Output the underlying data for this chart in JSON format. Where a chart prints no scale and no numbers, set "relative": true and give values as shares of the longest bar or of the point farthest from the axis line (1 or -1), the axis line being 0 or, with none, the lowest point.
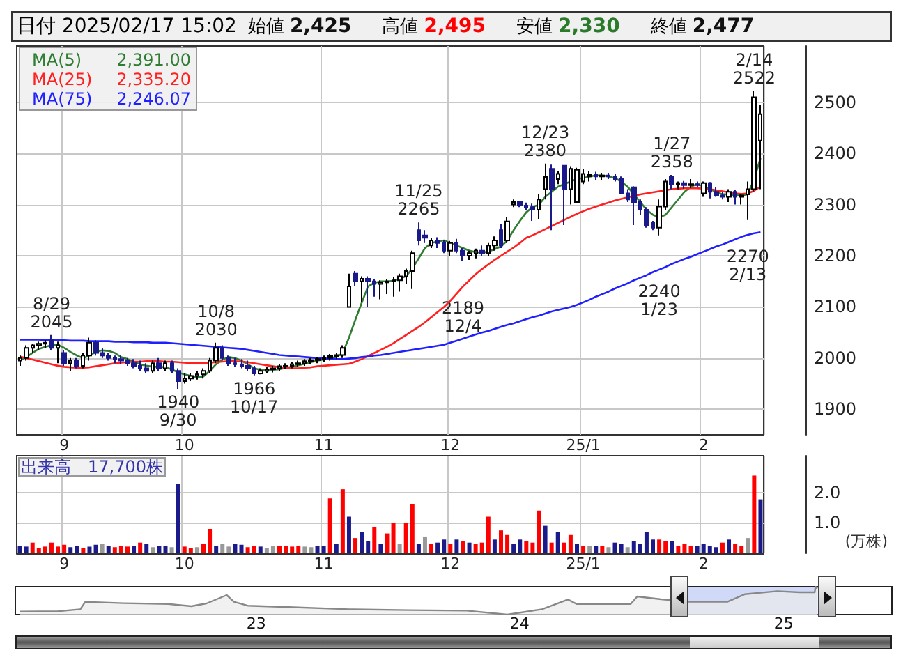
{
  "chart_data": [
    {
      "type": "candlestick",
      "title": "日付 2025/02/17 15:02",
      "annotations": [
        "始値 2,425",
        "高値 2,495",
        "安値 2,330",
        "終値 2,477",
        "2,391.00",
        "2,335.20",
        "2,246.07",
        {
          "text": "8/29\n2045",
          "y": 2045
        },
        {
          "text": "10/8\n2030",
          "y": 2030
        },
        {
          "text": "11/25\n2265",
          "y": 2265
        },
        {
          "text": "12/23\n2380",
          "y": 2380
        },
        {
          "text": "1/27\n2358",
          "y": 2358
        },
        {
          "text": "2/14\n2522",
          "y": 2522
        },
        {
          "text": "1940\n9/30",
          "y": 1940
        },
        {
          "text": "1966\n10/17",
          "y": 1966
        },
        {
          "text": "2189\n12/4",
          "y": 2189
        },
        {
          "text": "2240\n1/23",
          "y": 2240
        },
        {
          "text": "2270\n2/13",
          "y": 2270
        }
      ],
      "categories": [
        null,
        null,
        null,
        null,
        null,
        null,
        null,
        "9",
        null,
        null,
        null,
        null,
        null,
        null,
        null,
        null,
        null,
        null,
        null,
        null,
        null,
        null,
        null,
        null,
        null,
        null,
        "10",
        null,
        null,
        null,
        null,
        null,
        null,
        null,
        null,
        null,
        null,
        null,
        null,
        null,
        null,
        null,
        null,
        null,
        null,
        null,
        null,
        null,
        "11",
        null,
        null,
        null,
        null,
        null,
        null,
        null,
        null,
        null,
        null,
        null,
        null,
        null,
        null,
        null,
        null,
        null,
        null,
        null,
        "12",
        null,
        null,
        null,
        null,
        null,
        null,
        null,
        null,
        null,
        null,
        null,
        null,
        null,
        null,
        null,
        null,
        null,
        null,
        null,
        null,
        "25/1",
        null,
        null,
        null,
        null,
        null,
        null,
        null,
        null,
        null,
        null,
        null,
        null,
        null,
        null,
        null,
        null,
        null,
        null,
        "2",
        null,
        null,
        null,
        null,
        null,
        null,
        null,
        null,
        null
      ],
      "colors": [
        "#ffffff",
        "#ffffff",
        "#ffffff",
        "#ffffff",
        "#ffffff",
        "#1a1a8a",
        "#ffffff",
        "#1a1a8a",
        "#ffffff",
        "#1a1a8a",
        "#ffffff",
        "#ffffff",
        "#1a1a8a",
        "#1a1a8a",
        "#1a1a8a",
        "#1a1a8a",
        "#1a1a8a",
        "#1a1a8a",
        "#1a1a8a",
        "#1a1a8a",
        "#1a1a8a",
        "#ffffff",
        "#1a1a8a",
        "#ffffff",
        "#1a1a8a",
        "#1a1a8a",
        "#ffffff",
        "#ffffff",
        "#ffffff",
        "#ffffff",
        "#ffffff",
        "#ffffff",
        "#1a1a8a",
        "#1a1a8a",
        "#1a1a8a",
        "#1a1a8a",
        "#1a1a8a",
        "#1a1a8a",
        "#ffffff",
        "#ffffff",
        "#ffffff",
        "#ffffff",
        "#ffffff",
        "#ffffff",
        "#ffffff",
        "#ffffff",
        "#ffffff",
        "#ffffff",
        "#ffffff",
        "#ffffff",
        "#ffffff",
        "#ffffff",
        "#ffffff",
        "#1a1a8a",
        "#ffffff",
        "#1a1a8a",
        "#1a1a8a",
        "#ffffff",
        "#ffffff",
        "#ffffff",
        "#ffffff",
        "#ffffff",
        "#ffffff",
        "#1a1a8a",
        "#1a1a8a",
        "#ffffff",
        "#1a1a8a",
        "#1a1a8a",
        "#ffffff",
        "#1a1a8a",
        "#1a1a8a",
        "#ffffff",
        "#ffffff",
        "#1a1a8a",
        "#ffffff",
        "#ffffff",
        "#1a1a8a",
        "#ffffff",
        "#ffffff",
        "#1a1a8a",
        "#1a1a8a",
        "#1a1a8a",
        "#ffffff",
        "#ffffff",
        "#1a1a8a",
        "#ffffff",
        "#1a1a8a",
        "#ffffff",
        "#ffffff",
        "#ffffff",
        "#ffffff",
        "#1a1a8a",
        "#ffffff",
        "#1a1a8a",
        "#1a1a8a",
        "#1a1a8a",
        "#1a1a8a",
        "#1a1a8a",
        "#1a1a8a",
        "#1a1a8a",
        "#1a1a8a",
        "#ffffff",
        "#ffffff",
        "#1a1a8a",
        "#ffffff",
        "#1a1a8a",
        "#ffffff",
        "#1a1a8a",
        "#ffffff",
        "#1a1a8a",
        "#1a1a8a",
        "#1a1a8a",
        "#ffffff",
        "#1a1a8a",
        "#ffffff",
        "#ffffff",
        "#ffffff",
        "#ffffff"
      ],
      "ohlc": [
        [
          1995,
          2005,
          1985,
          2000
        ],
        [
          2000,
          2025,
          1995,
          2020
        ],
        [
          2020,
          2028,
          2010,
          2025
        ],
        [
          2025,
          2032,
          2015,
          2028
        ],
        [
          2028,
          2035,
          2020,
          2030
        ],
        [
          2035,
          2045,
          2015,
          2020
        ],
        [
          2020,
          2032,
          1990,
          2025
        ],
        [
          2010,
          2015,
          1985,
          1990
        ],
        [
          1990,
          2000,
          1975,
          1995
        ],
        [
          1995,
          2000,
          1980,
          1985
        ],
        [
          1985,
          2010,
          1980,
          2005
        ],
        [
          2005,
          2040,
          1995,
          2030
        ],
        [
          2030,
          2035,
          2005,
          2010
        ],
        [
          2010,
          2020,
          2000,
          2005
        ],
        [
          2005,
          2010,
          1995,
          2000
        ],
        [
          2000,
          2005,
          1990,
          1998
        ],
        [
          1998,
          2005,
          1988,
          1995
        ],
        [
          1995,
          2000,
          1985,
          1990
        ],
        [
          1990,
          1998,
          1980,
          1985
        ],
        [
          1985,
          1995,
          1975,
          1980
        ],
        [
          1980,
          1990,
          1970,
          1975
        ],
        [
          1975,
          1995,
          1970,
          1990
        ],
        [
          1990,
          2000,
          1975,
          1980
        ],
        [
          1980,
          1995,
          1975,
          1990
        ],
        [
          1990,
          1995,
          1970,
          1975
        ],
        [
          1975,
          1980,
          1940,
          1955
        ],
        [
          1955,
          1970,
          1950,
          1960
        ],
        [
          1960,
          1970,
          1955,
          1965
        ],
        [
          1965,
          1975,
          1958,
          1968
        ],
        [
          1968,
          1980,
          1960,
          1975
        ],
        [
          1975,
          2000,
          1970,
          1995
        ],
        [
          1995,
          2030,
          1990,
          2020
        ],
        [
          2020,
          2025,
          1995,
          2000
        ],
        [
          2000,
          2005,
          1985,
          1990
        ],
        [
          1990,
          2000,
          1982,
          1988
        ],
        [
          1988,
          1998,
          1980,
          1985
        ],
        [
          1985,
          1995,
          1975,
          1980
        ],
        [
          1980,
          1985,
          1966,
          1970
        ],
        [
          1970,
          1980,
          1968,
          1975
        ],
        [
          1975,
          1982,
          1970,
          1978
        ],
        [
          1978,
          1985,
          1972,
          1980
        ],
        [
          1980,
          1988,
          1975,
          1984
        ],
        [
          1984,
          1990,
          1978,
          1985
        ],
        [
          1985,
          1992,
          1980,
          1988
        ],
        [
          1988,
          1995,
          1982,
          1990
        ],
        [
          1990,
          1998,
          1985,
          1994
        ],
        [
          1994,
          2000,
          1988,
          1996
        ],
        [
          1996,
          2002,
          1990,
          1998
        ],
        [
          1998,
          2005,
          1992,
          2000
        ],
        [
          2000,
          2008,
          1995,
          2004
        ],
        [
          2004,
          2010,
          1998,
          2006
        ],
        [
          2006,
          2025,
          2000,
          2020
        ],
        [
          2100,
          2165,
          2100,
          2140
        ],
        [
          2165,
          2170,
          2140,
          2150
        ],
        [
          2150,
          2160,
          2110,
          2155
        ],
        [
          2155,
          2160,
          2100,
          2150
        ],
        [
          2150,
          2155,
          2120,
          2145
        ],
        [
          2145,
          2152,
          2115,
          2148
        ],
        [
          2148,
          2155,
          2125,
          2150
        ],
        [
          2150,
          2158,
          2120,
          2152
        ],
        [
          2152,
          2165,
          2130,
          2160
        ],
        [
          2160,
          2175,
          2145,
          2170
        ],
        [
          2170,
          2210,
          2135,
          2205
        ],
        [
          2250,
          2265,
          2220,
          2230
        ],
        [
          2240,
          2250,
          2225,
          2235
        ],
        [
          2220,
          2235,
          2215,
          2230
        ],
        [
          2230,
          2236,
          2215,
          2225
        ],
        [
          2225,
          2231,
          2205,
          2210
        ],
        [
          2210,
          2229,
          2200,
          2225
        ],
        [
          2225,
          2233,
          2205,
          2210
        ],
        [
          2210,
          2215,
          2189,
          2200
        ],
        [
          2200,
          2210,
          2192,
          2205
        ],
        [
          2205,
          2214,
          2195,
          2210
        ],
        [
          2210,
          2220,
          2200,
          2205
        ],
        [
          2205,
          2225,
          2200,
          2220
        ],
        [
          2220,
          2238,
          2210,
          2230
        ],
        [
          2250,
          2262,
          2215,
          2220
        ],
        [
          2230,
          2275,
          2225,
          2267
        ],
        [
          2300,
          2310,
          2295,
          2305
        ],
        [
          2305,
          2306,
          2295,
          2298
        ],
        [
          2298,
          2304,
          2290,
          2295
        ],
        [
          2295,
          2302,
          2268,
          2290
        ],
        [
          2290,
          2320,
          2272,
          2310
        ],
        [
          2330,
          2380,
          2310,
          2354
        ],
        [
          2370,
          2378,
          2250,
          2330
        ],
        [
          2350,
          2365,
          2340,
          2360
        ],
        [
          2376,
          2376,
          2260,
          2330
        ],
        [
          2330,
          2375,
          2300,
          2370
        ],
        [
          2305,
          2372,
          2304,
          2368
        ],
        [
          2345,
          2370,
          2340,
          2360
        ],
        [
          2355,
          2365,
          2345,
          2358
        ],
        [
          2358,
          2364,
          2348,
          2355
        ],
        [
          2355,
          2362,
          2348,
          2357
        ],
        [
          2357,
          2362,
          2350,
          2355
        ],
        [
          2355,
          2360,
          2345,
          2350
        ],
        [
          2350,
          2355,
          2320,
          2322
        ],
        [
          2322,
          2330,
          2305,
          2310
        ],
        [
          2334,
          2336,
          2260,
          2305
        ],
        [
          2305,
          2310,
          2280,
          2290
        ],
        [
          2290,
          2295,
          2255,
          2260
        ],
        [
          2265,
          2268,
          2250,
          2255
        ],
        [
          2255,
          2310,
          2240,
          2296
        ],
        [
          2296,
          2350,
          2290,
          2345
        ],
        [
          2354,
          2358,
          2330,
          2340
        ],
        [
          2340,
          2345,
          2330,
          2342
        ],
        [
          2342,
          2346,
          2331,
          2338
        ],
        [
          2338,
          2350,
          2332,
          2340
        ],
        [
          2340,
          2345,
          2335,
          2338
        ],
        [
          2322,
          2345,
          2315,
          2342
        ],
        [
          2342,
          2344,
          2312,
          2325
        ],
        [
          2325,
          2335,
          2315,
          2318
        ],
        [
          2318,
          2325,
          2310,
          2315
        ],
        [
          2315,
          2330,
          2305,
          2325
        ],
        [
          2325,
          2328,
          2300,
          2315
        ],
        [
          2315,
          2320,
          2300,
          2318
        ],
        [
          2320,
          2345,
          2270,
          2330
        ],
        [
          2330,
          2522,
          2326,
          2510
        ],
        [
          2425,
          2495,
          2330,
          2477
        ]
      ],
      "series": [
        {
          "type": "line",
          "name": "MA(5)",
          "color": "#2e7d32",
          "values": [
            1995,
            2002,
            2010,
            2018,
            2022,
            2025,
            2026,
            2020,
            2012,
            2005,
            2000,
            2005,
            2012,
            2015,
            2014,
            2010,
            2002,
            1998,
            1993,
            1988,
            1985,
            1983,
            1983,
            1982,
            1978,
            1972,
            1968,
            1965,
            1962,
            1964,
            1975,
            1988,
            1997,
            2002,
            2000,
            1995,
            1988,
            1980,
            1977,
            1976,
            1977,
            1978,
            1981,
            1983,
            1986,
            1989,
            1992,
            1995,
            1997,
            2000,
            2002,
            2010,
            2040,
            2075,
            2108,
            2140,
            2147,
            2150,
            2150,
            2151,
            2155,
            2160,
            2175,
            2195,
            2215,
            2225,
            2228,
            2230,
            2225,
            2220,
            2215,
            2210,
            2207,
            2206,
            2208,
            2213,
            2218,
            2230,
            2250,
            2268,
            2285,
            2295,
            2300,
            2315,
            2325,
            2335,
            2340,
            2345,
            2350,
            2352,
            2355,
            2357,
            2357,
            2355,
            2352,
            2345,
            2335,
            2320,
            2305,
            2290,
            2280,
            2275,
            2280,
            2295,
            2310,
            2325,
            2335,
            2340,
            2335,
            2330,
            2325,
            2320,
            2320,
            2318,
            2318,
            2320,
            2350,
            2391
          ]
        },
        {
          "type": "line",
          "name": "MA(25)",
          "color": "#ff2020",
          "values": [
            2003,
            2000,
            1997,
            1994,
            1991,
            1988,
            1985,
            1983,
            1982,
            1981,
            1981,
            1982,
            1984,
            1986,
            1988,
            1990,
            1991,
            1992,
            1993,
            1993,
            1994,
            1994,
            1994,
            1993,
            1993,
            1992,
            1991,
            1990,
            1990,
            1990,
            1991,
            1992,
            1993,
            1994,
            1994,
            1993,
            1992,
            1990,
            1988,
            1986,
            1984,
            1982,
            1981,
            1980,
            1980,
            1981,
            1982,
            1984,
            1985,
            1986,
            1987,
            1988,
            1989,
            1993,
            1998,
            2004,
            2010,
            2016,
            2022,
            2029,
            2037,
            2045,
            2053,
            2061,
            2070,
            2080,
            2090,
            2100,
            2112,
            2126,
            2140,
            2152,
            2164,
            2174,
            2183,
            2192,
            2200,
            2208,
            2216,
            2225,
            2235,
            2240,
            2246,
            2252,
            2258,
            2264,
            2270,
            2276,
            2282,
            2287,
            2292,
            2296,
            2300,
            2304,
            2308,
            2311,
            2314,
            2317,
            2320,
            2322,
            2324,
            2326,
            2328,
            2330,
            2331,
            2332,
            2332,
            2332,
            2331,
            2330,
            2328,
            2326,
            2324,
            2322,
            2321,
            2322,
            2327,
            2335.2
          ]
        },
        {
          "type": "line",
          "name": "MA(75)",
          "color": "#2020ff",
          "values": [
            2036,
            2036,
            2036,
            2036,
            2035,
            2035,
            2035,
            2035,
            2034,
            2034,
            2034,
            2033,
            2033,
            2033,
            2033,
            2032,
            2032,
            2032,
            2031,
            2031,
            2031,
            2030,
            2030,
            2030,
            2029,
            2028,
            2027,
            2026,
            2025,
            2024,
            2023,
            2022,
            2021,
            2020,
            2019,
            2018,
            2016,
            2014,
            2012,
            2010,
            2008,
            2006,
            2005,
            2004,
            2003,
            2002,
            2001,
            2000,
            1999,
            1999,
            1998,
            1998,
            1999,
            2000,
            2002,
            2003,
            2005,
            2006,
            2008,
            2010,
            2012,
            2014,
            2016,
            2018,
            2020,
            2022,
            2024,
            2026,
            2030,
            2034,
            2038,
            2042,
            2046,
            2050,
            2053,
            2057,
            2061,
            2065,
            2068,
            2072,
            2076,
            2080,
            2083,
            2087,
            2091,
            2094,
            2097,
            2100,
            2104,
            2109,
            2114,
            2120,
            2125,
            2130,
            2136,
            2141,
            2146,
            2152,
            2157,
            2162,
            2168,
            2173,
            2178,
            2184,
            2189,
            2194,
            2198,
            2203,
            2208,
            2213,
            2218,
            2222,
            2227,
            2232,
            2237,
            2241,
            2244,
            2246.07
          ]
        }
      ],
      "ylim": [
        1850,
        2610
      ],
      "yticks": [
        1900,
        2000,
        2100,
        2200,
        2300,
        2400,
        2500
      ],
      "grid": true,
      "legend": "top left",
      "marker": "none"
    },
    {
      "type": "bar",
      "title": "出来高　17,700株",
      "ylabel": "(万株)",
      "categories": [
        null,
        null,
        null,
        null,
        null,
        null,
        null,
        "9",
        null,
        null,
        null,
        null,
        null,
        null,
        null,
        null,
        null,
        null,
        null,
        null,
        null,
        null,
        null,
        null,
        null,
        null,
        "10",
        null,
        null,
        null,
        null,
        null,
        null,
        null,
        null,
        null,
        null,
        null,
        null,
        null,
        null,
        null,
        null,
        null,
        null,
        null,
        null,
        null,
        "11",
        null,
        null,
        null,
        null,
        null,
        null,
        null,
        null,
        null,
        null,
        null,
        null,
        null,
        null,
        null,
        null,
        null,
        null,
        null,
        "12",
        null,
        null,
        null,
        null,
        null,
        null,
        null,
        null,
        null,
        null,
        null,
        null,
        null,
        null,
        null,
        null,
        null,
        null,
        null,
        null,
        "25/1",
        null,
        null,
        null,
        null,
        null,
        null,
        null,
        null,
        null,
        null,
        null,
        null,
        null,
        null,
        null,
        null,
        null,
        null,
        "2",
        null,
        null,
        null,
        null,
        null,
        null,
        null,
        null,
        null
      ],
      "values": [
        0.25,
        0.22,
        0.35,
        0.18,
        0.22,
        0.35,
        0.22,
        0.28,
        0.2,
        0.25,
        0.18,
        0.22,
        0.28,
        0.3,
        0.25,
        0.2,
        0.25,
        0.22,
        0.25,
        0.35,
        0.3,
        0.2,
        0.25,
        0.25,
        0.2,
        2.27,
        0.22,
        0.18,
        0.2,
        0.3,
        0.8,
        0.25,
        0.3,
        0.22,
        0.3,
        0.28,
        0.2,
        0.25,
        0.22,
        0.18,
        0.25,
        0.25,
        0.25,
        0.22,
        0.25,
        0.22,
        0.2,
        0.25,
        0.25,
        1.8,
        0.3,
        2.1,
        1.2,
        0.5,
        0.7,
        0.4,
        0.85,
        0.3,
        0.65,
        1.0,
        0.3,
        1.0,
        1.6,
        0.3,
        0.55,
        0.3,
        0.35,
        0.45,
        0.3,
        0.45,
        0.4,
        0.35,
        0.3,
        0.35,
        1.2,
        0.45,
        0.75,
        0.6,
        0.3,
        0.45,
        0.4,
        0.35,
        1.4,
        0.9,
        0.35,
        0.7,
        0.35,
        0.6,
        0.3,
        0.25,
        0.25,
        0.25,
        0.25,
        0.2,
        0.35,
        0.3,
        0.2,
        0.4,
        0.3,
        0.7,
        0.45,
        0.45,
        0.4,
        0.4,
        0.25,
        0.3,
        0.25,
        0.25,
        0.3,
        0.25,
        0.2,
        0.35,
        0.45,
        0.3,
        0.25,
        0.5,
        2.55,
        1.77
      ],
      "colors": [
        "#1a1a8a",
        "#1a1a8a",
        "#ff0000",
        "#ff0000",
        "#ff0000",
        "#ff0000",
        "#ff0000",
        "#ff0000",
        "#1a1a8a",
        "#1a1a8a",
        "#ff0000",
        "#1a1a8a",
        "#1a1a8a",
        "#999999",
        "#1a1a8a",
        "#ff0000",
        "#ff0000",
        "#ff0000",
        "#1a1a8a",
        "#ff0000",
        "#1a1a8a",
        "#999999",
        "#1a1a8a",
        "#1a1a8a",
        "#999999",
        "#1a1a8a",
        "#ff0000",
        "#ff0000",
        "#999999",
        "#ff0000",
        "#ff0000",
        "#1a1a8a",
        "#999999",
        "#999999",
        "#1a1a8a",
        "#1a1a8a",
        "#ff0000",
        "#ff0000",
        "#1a1a8a",
        "#999999",
        "#999999",
        "#ff0000",
        "#ff0000",
        "#ff0000",
        "#ff0000",
        "#999999",
        "#999999",
        "#1a1a8a",
        "#1a1a8a",
        "#ff0000",
        "#1a1a8a",
        "#ff0000",
        "#1a1a8a",
        "#ff0000",
        "#1a1a8a",
        "#1a1a8a",
        "#ff0000",
        "#1a1a8a",
        "#ff0000",
        "#ff0000",
        "#999999",
        "#ff0000",
        "#ff0000",
        "#1a1a8a",
        "#999999",
        "#ff0000",
        "#1a1a8a",
        "#1a1a8a",
        "#ff0000",
        "#1a1a8a",
        "#ff0000",
        "#1a1a8a",
        "#ff0000",
        "#ff0000",
        "#ff0000",
        "#1a1a8a",
        "#ff0000",
        "#ff0000",
        "#1a1a8a",
        "#1a1a8a",
        "#ff0000",
        "#ff0000",
        "#ff0000",
        "#1a1a8a",
        "#ff0000",
        "#1a1a8a",
        "#ff0000",
        "#ff0000",
        "#1a1a8a",
        "#ff0000",
        "#999999",
        "#1a1a8a",
        "#ff0000",
        "#999999",
        "#1a1a8a",
        "#1a1a8a",
        "#999999",
        "#1a1a8a",
        "#1a1a8a",
        "#1a1a8a",
        "#1a1a8a",
        "#ff0000",
        "#ff0000",
        "#1a1a8a",
        "#ff0000",
        "#ff0000",
        "#ff0000",
        "#1a1a8a",
        "#1a1a8a",
        "#1a1a8a",
        "#1a1a8a",
        "#ff0000",
        "#1a1a8a",
        "#ff0000",
        "#ff0000",
        "#999999",
        "#ff0000",
        "#1a1a8a"
      ],
      "ylim": [
        0,
        3.2
      ],
      "yticks": [
        {
          "value": 1,
          "label": "1.0"
        },
        {
          "value": 2,
          "label": "2.0"
        }
      ],
      "grid": true
    },
    {
      "type": "area",
      "relative": true,
      "color": "#888888",
      "x": [
        "2022-02-07",
        "2022-04-01",
        "2022-05-02",
        "2022-05-09",
        "2022-07-01",
        "2022-09-01",
        "2022-10-03",
        "2022-10-24",
        "2022-11-21",
        "2022-12-01",
        "2022-12-20",
        "2023-02-15",
        "2023-05-10",
        "2023-08-01",
        "2023-10-20",
        "2023-12-15",
        "2024-02-01",
        "2024-03-08",
        "2024-03-20",
        "2024-06-03",
        "2024-06-12",
        "2024-07-15",
        "2024-08-22",
        "2024-10-15",
        "2024-11-08",
        "2024-12-23",
        "2025-01-23",
        "2025-02-13",
        "2025-02-14",
        "2025-02-17"
      ],
      "values": [
        0.11,
        0.12,
        0.19,
        0.46,
        0.41,
        0.38,
        0.3,
        0.4,
        0.7,
        0.46,
        0.32,
        0.27,
        0.19,
        0.16,
        0.14,
        0,
        0.19,
        0.54,
        0.38,
        0.38,
        0.65,
        0.55,
        0.46,
        0.46,
        0.73,
        0.84,
        0.8,
        0.8,
        1,
        0.95
      ],
      "xlim": [
        "2022-02-01",
        "2025-05-31"
      ],
      "xticks": [
        {
          "value": "2023-01-01",
          "label": "23"
        },
        {
          "value": "2024-01-01",
          "label": "24"
        },
        {
          "value": "2025-01-01",
          "label": "25"
        }
      ],
      "bands": [
        {
          "axis": "x",
          "from": "2024-08-22",
          "to": "2025-02-17",
          "color": "#b3bff5"
        }
      ],
      "tick_labels": "x"
    }
  ]
}
